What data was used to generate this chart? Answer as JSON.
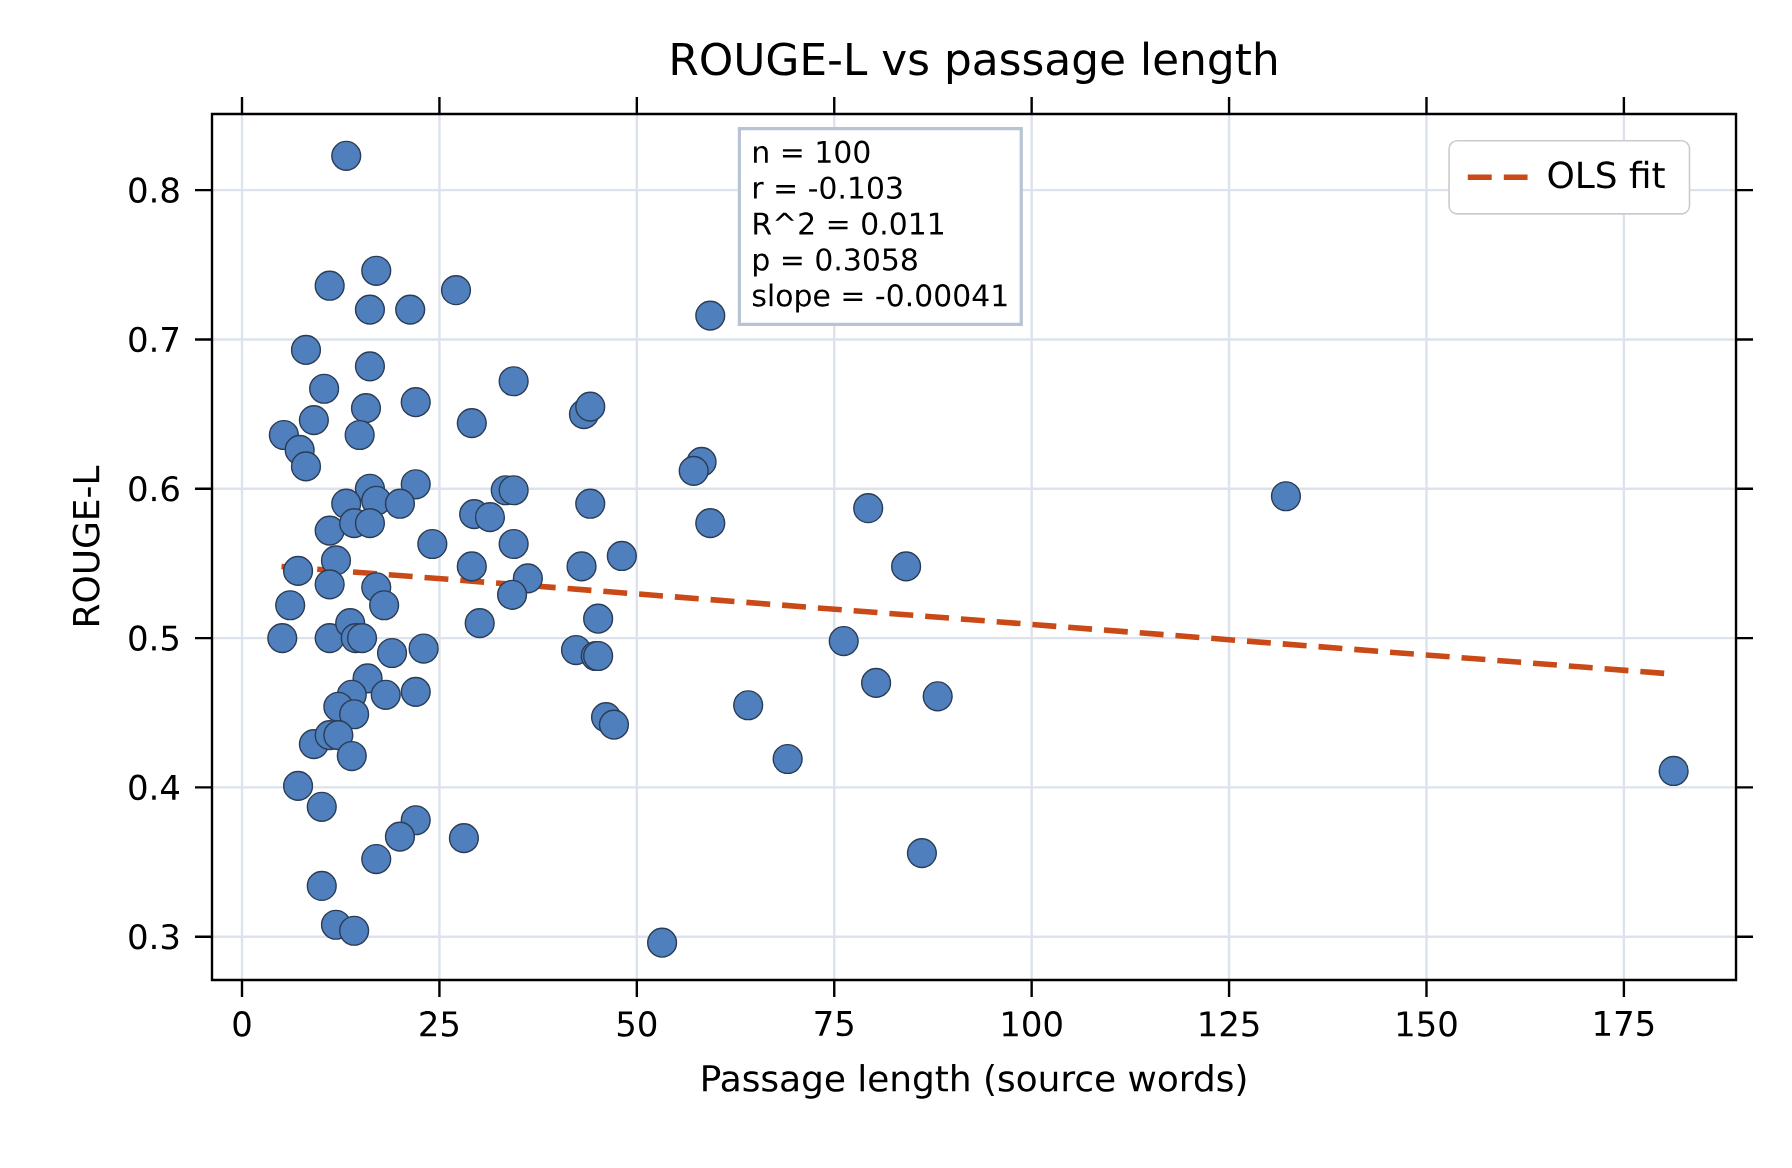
{
  "chart_data": {
    "type": "scatter",
    "title": "ROUGE-L vs passage length",
    "xlabel": "Passage length (source words)",
    "ylabel": "ROUGE-L",
    "annotations": [
      "n = 100",
      "r = -0.103",
      "R^2 = 0.011",
      "p = 0.3058",
      "slope = -0.00041"
    ],
    "xlim": [
      -3.8,
      189.2
    ],
    "ylim": [
      0.271,
      0.851
    ],
    "xticks": [
      0,
      25,
      50,
      75,
      100,
      125,
      150,
      175
    ],
    "yticks": [
      0.3,
      0.4,
      0.5,
      0.6,
      0.7,
      0.8
    ],
    "grid": true,
    "legend": "top right",
    "series": [
      {
        "marker": "circle",
        "color": "#4f7fbd",
        "x": [
          13.2,
          17,
          11.1,
          16.2,
          21.3,
          27.1,
          8.1,
          16.2,
          34.4,
          10.4,
          15.7,
          22,
          9.1,
          5.3,
          14.9,
          29.1,
          7.3,
          8.1,
          43.3,
          44.1,
          16.2,
          22,
          17,
          13.2,
          20,
          29.4,
          31.4,
          33.4,
          34.4,
          44.1,
          11.1,
          14.2,
          16.2,
          24.1,
          29.1,
          34.4,
          7.1,
          11.9,
          11.1,
          17,
          18,
          6.1,
          36.2,
          34.2,
          43,
          30.1,
          5.1,
          11.1,
          13.7,
          14.4,
          15.2,
          19,
          23,
          42.3,
          44.8,
          15.9,
          13.9,
          18.2,
          22,
          12.2,
          14.2,
          9.1,
          11.1,
          12.2,
          13.9,
          7.1,
          10.1,
          22,
          20,
          28.1,
          17,
          10.1,
          11.9,
          14.2,
          59.3,
          58.2,
          57.2,
          79.3,
          59.3,
          48.1,
          84.1,
          45.1,
          45.1,
          76.2,
          46.1,
          47.1,
          80.3,
          88.1,
          64.1,
          69.1,
          86.1,
          53.2,
          132.2,
          181.3
        ],
        "values": [
          0.823,
          0.746,
          0.736,
          0.72,
          0.72,
          0.733,
          0.693,
          0.682,
          0.672,
          0.667,
          0.654,
          0.658,
          0.646,
          0.636,
          0.636,
          0.644,
          0.626,
          0.615,
          0.65,
          0.655,
          0.6,
          0.603,
          0.592,
          0.59,
          0.59,
          0.583,
          0.581,
          0.599,
          0.599,
          0.59,
          0.572,
          0.577,
          0.577,
          0.563,
          0.548,
          0.563,
          0.545,
          0.552,
          0.536,
          0.534,
          0.522,
          0.522,
          0.54,
          0.529,
          0.548,
          0.51,
          0.5,
          0.5,
          0.51,
          0.5,
          0.5,
          0.49,
          0.493,
          0.492,
          0.488,
          0.473,
          0.462,
          0.462,
          0.464,
          0.454,
          0.449,
          0.429,
          0.435,
          0.435,
          0.421,
          0.401,
          0.387,
          0.378,
          0.367,
          0.366,
          0.352,
          0.334,
          0.308,
          0.304,
          0.716,
          0.618,
          0.612,
          0.587,
          0.577,
          0.555,
          0.548,
          0.513,
          0.488,
          0.498,
          0.447,
          0.442,
          0.47,
          0.461,
          0.455,
          0.419,
          0.356,
          0.296,
          0.595,
          0.411
        ]
      },
      {
        "type": "line",
        "name": "OLS fit",
        "color": "#c94a16",
        "line_style": "dashed",
        "marker": "none",
        "x": [
          5,
          181
        ],
        "values": [
          0.548,
          0.476
        ]
      }
    ]
  }
}
